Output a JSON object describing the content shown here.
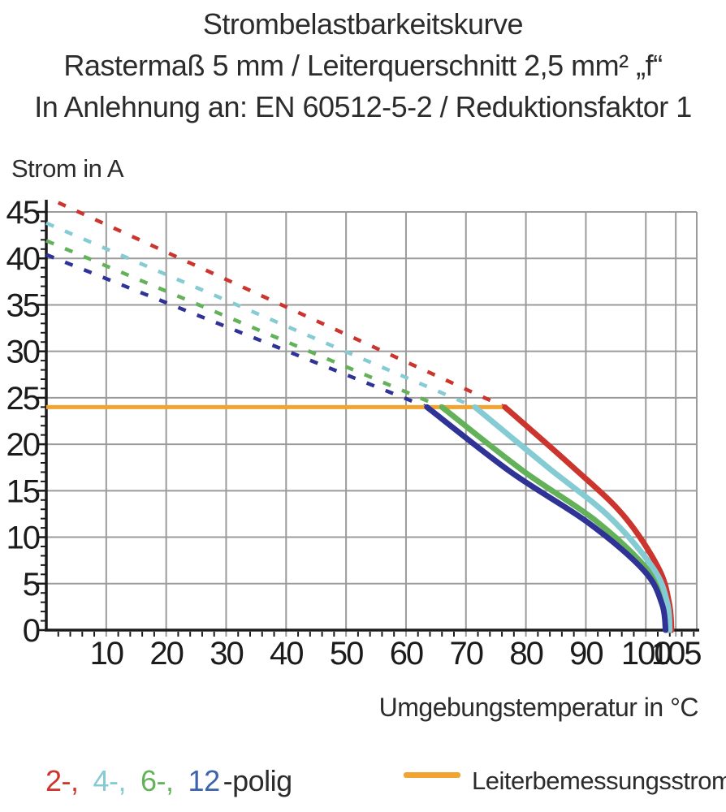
{
  "title": {
    "line1": "Strombelastbarkeitskurve",
    "line2": "Rastermaß 5 mm / Leiterquerschnitt 2,5 mm² „f“",
    "line3": "In Anlehnung an: EN 60512-5-2 / Reduktionsfaktor 1"
  },
  "axes": {
    "y_label": "Strom in A",
    "x_label": "Umgebungstemperatur in °C"
  },
  "legend": {
    "pole_items": [
      {
        "label": "2-,",
        "color": "#cc352e"
      },
      {
        "label": "4-,",
        "color": "#85cbd3"
      },
      {
        "label": "6-,",
        "color": "#63b25a"
      },
      {
        "label": "12",
        "color": "#3e63ad"
      }
    ],
    "pole_suffix": "-polig",
    "rated_current_label": "Leiterbemessungsstrom",
    "rated_current_color": "#f3a32f"
  },
  "chart_data": {
    "type": "line",
    "title": "Strombelastbarkeitskurve",
    "xlabel": "Umgebungstemperatur in °C",
    "ylabel": "Strom in A",
    "xlim": [
      0,
      108.5
    ],
    "ylim": [
      0,
      45
    ],
    "x_ticks": [
      10,
      20,
      30,
      40,
      50,
      60,
      70,
      80,
      90,
      100,
      105
    ],
    "y_ticks": [
      0,
      5,
      10,
      15,
      20,
      25,
      30,
      35,
      40,
      45
    ],
    "x_minor_step": 2,
    "y_minor_step": 1,
    "grid": true,
    "grid_color": "#9b9b9b",
    "axis_color": "#1b1b1b",
    "rated_current": {
      "name": "Leiterbemessungsstrom",
      "value": 24,
      "x_start": 0,
      "x_end": 76.5,
      "color": "#f3a32f"
    },
    "series": [
      {
        "name": "2-polig derating (dashed)",
        "color": "#cc352e",
        "style": "dashed",
        "points": [
          [
            2.0,
            46.0
          ],
          [
            76.5,
            24
          ]
        ]
      },
      {
        "name": "4-polig derating (dashed)",
        "color": "#85cbd3",
        "style": "dashed",
        "points": [
          [
            0,
            43.8
          ],
          [
            71.5,
            24
          ]
        ]
      },
      {
        "name": "6-polig derating (dashed)",
        "color": "#63b25a",
        "style": "dashed",
        "points": [
          [
            0,
            41.9
          ],
          [
            66.0,
            24
          ]
        ]
      },
      {
        "name": "12-polig derating (dashed)",
        "color": "#2f3396",
        "style": "dashed",
        "points": [
          [
            0,
            40.4
          ],
          [
            63.5,
            24
          ]
        ]
      },
      {
        "name": "2-polig limit (solid)",
        "color": "#cc352e",
        "style": "solid",
        "points": [
          [
            76.5,
            24
          ],
          [
            87.4,
            17.8
          ],
          [
            96.2,
            12.4
          ],
          [
            102.1,
            6.7
          ],
          [
            103.9,
            2.9
          ],
          [
            104.3,
            0
          ]
        ]
      },
      {
        "name": "6-polig limit (solid)",
        "color": "#63b25a",
        "style": "solid",
        "points": [
          [
            66.0,
            24
          ],
          [
            79.4,
            17.2
          ],
          [
            91.6,
            11.8
          ],
          [
            100.3,
            6.5
          ],
          [
            103.1,
            2.8
          ],
          [
            103.7,
            0
          ]
        ]
      },
      {
        "name": "4-polig limit (solid)",
        "color": "#85cbd3",
        "style": "solid",
        "points": [
          [
            71.5,
            24
          ],
          [
            83.5,
            17.6
          ],
          [
            93.9,
            12.2
          ],
          [
            101.3,
            6.6
          ],
          [
            103.6,
            2.9
          ],
          [
            104.0,
            0
          ]
        ]
      },
      {
        "name": "12-polig limit (solid)",
        "color": "#2f3396",
        "style": "solid",
        "points": [
          [
            63.5,
            24
          ],
          [
            77.5,
            17.0
          ],
          [
            90.3,
            11.6
          ],
          [
            99.7,
            6.4
          ],
          [
            102.7,
            2.8
          ],
          [
            103.3,
            0
          ]
        ]
      }
    ]
  }
}
